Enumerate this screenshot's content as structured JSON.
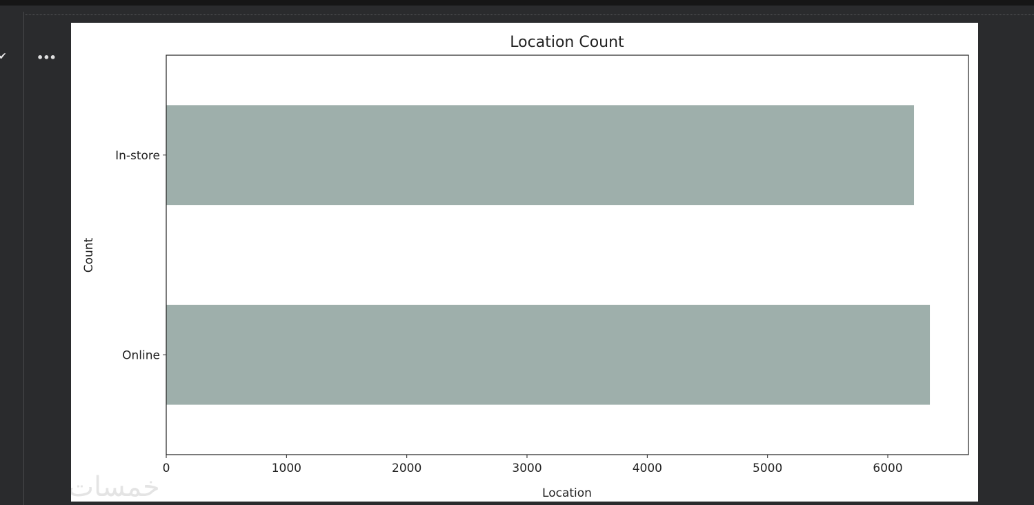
{
  "toolbar": {
    "status_icon": "check-icon",
    "more_icon": "ellipsis-icon",
    "status_glyph": "✔",
    "more_glyph": "•••"
  },
  "watermark": "خمسات",
  "chart_data": {
    "type": "bar",
    "orientation": "horizontal",
    "title": "Location Count",
    "xlabel": "Location",
    "ylabel": "Count",
    "categories": [
      "In-store",
      "Online"
    ],
    "values": [
      6218,
      6350
    ],
    "xlim": [
      0,
      6671
    ],
    "xticks": [
      0,
      1000,
      2000,
      3000,
      4000,
      5000,
      6000
    ],
    "bar_color": "#9eafab",
    "grid": false,
    "legend": "none"
  }
}
